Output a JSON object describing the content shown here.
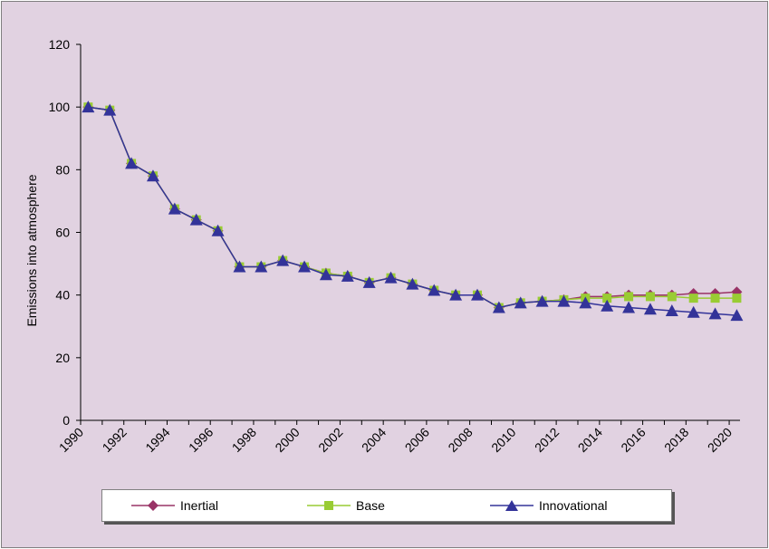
{
  "chart_data": {
    "type": "line",
    "title": "",
    "xlabel": "",
    "ylabel": "Emissions into atmosphere",
    "ylim": [
      0,
      120
    ],
    "yticks": [
      0,
      20,
      40,
      60,
      80,
      100,
      120
    ],
    "x": [
      1990,
      1991,
      1992,
      1993,
      1994,
      1995,
      1996,
      1997,
      1998,
      1999,
      2000,
      2001,
      2002,
      2003,
      2004,
      2005,
      2006,
      2007,
      2008,
      2009,
      2010,
      2011,
      2012,
      2013,
      2014,
      2015,
      2016,
      2017,
      2018,
      2019,
      2020
    ],
    "xtick_labels": [
      "1990",
      "1992",
      "1994",
      "1996",
      "1998",
      "2000",
      "2002",
      "2004",
      "2006",
      "2008",
      "2010",
      "2012",
      "2014",
      "2016",
      "2018",
      "2020"
    ],
    "legend_position": "bottom",
    "series": [
      {
        "name": "Inertial",
        "color": "#993366",
        "marker": "diamond",
        "values": [
          100,
          99,
          82,
          78,
          67.5,
          64,
          60.5,
          49,
          49,
          51,
          49,
          47,
          46,
          44,
          45.5,
          43.5,
          41.5,
          40,
          40,
          36,
          37.5,
          38,
          38.5,
          39.5,
          39.5,
          40,
          40,
          40,
          40.5,
          40.5,
          41
        ]
      },
      {
        "name": "Base",
        "color": "#99cc33",
        "marker": "square",
        "values": [
          100,
          99,
          82,
          78,
          67.5,
          64,
          60.5,
          49,
          49,
          51,
          49,
          47,
          46,
          44,
          45.5,
          43.5,
          41.5,
          40,
          40,
          36,
          37.5,
          38,
          38.5,
          39,
          39,
          39.5,
          39.5,
          39.5,
          39,
          39,
          39
        ]
      },
      {
        "name": "Innovational",
        "color": "#333399",
        "marker": "triangle",
        "values": [
          100,
          99,
          82,
          78,
          67.5,
          64,
          60.5,
          49,
          49,
          51,
          49,
          46.5,
          46,
          44,
          45.5,
          43.5,
          41.5,
          40,
          40,
          36,
          37.5,
          38,
          38,
          37.5,
          36.5,
          36,
          35.5,
          35,
          34.5,
          34,
          33.5
        ]
      }
    ]
  }
}
